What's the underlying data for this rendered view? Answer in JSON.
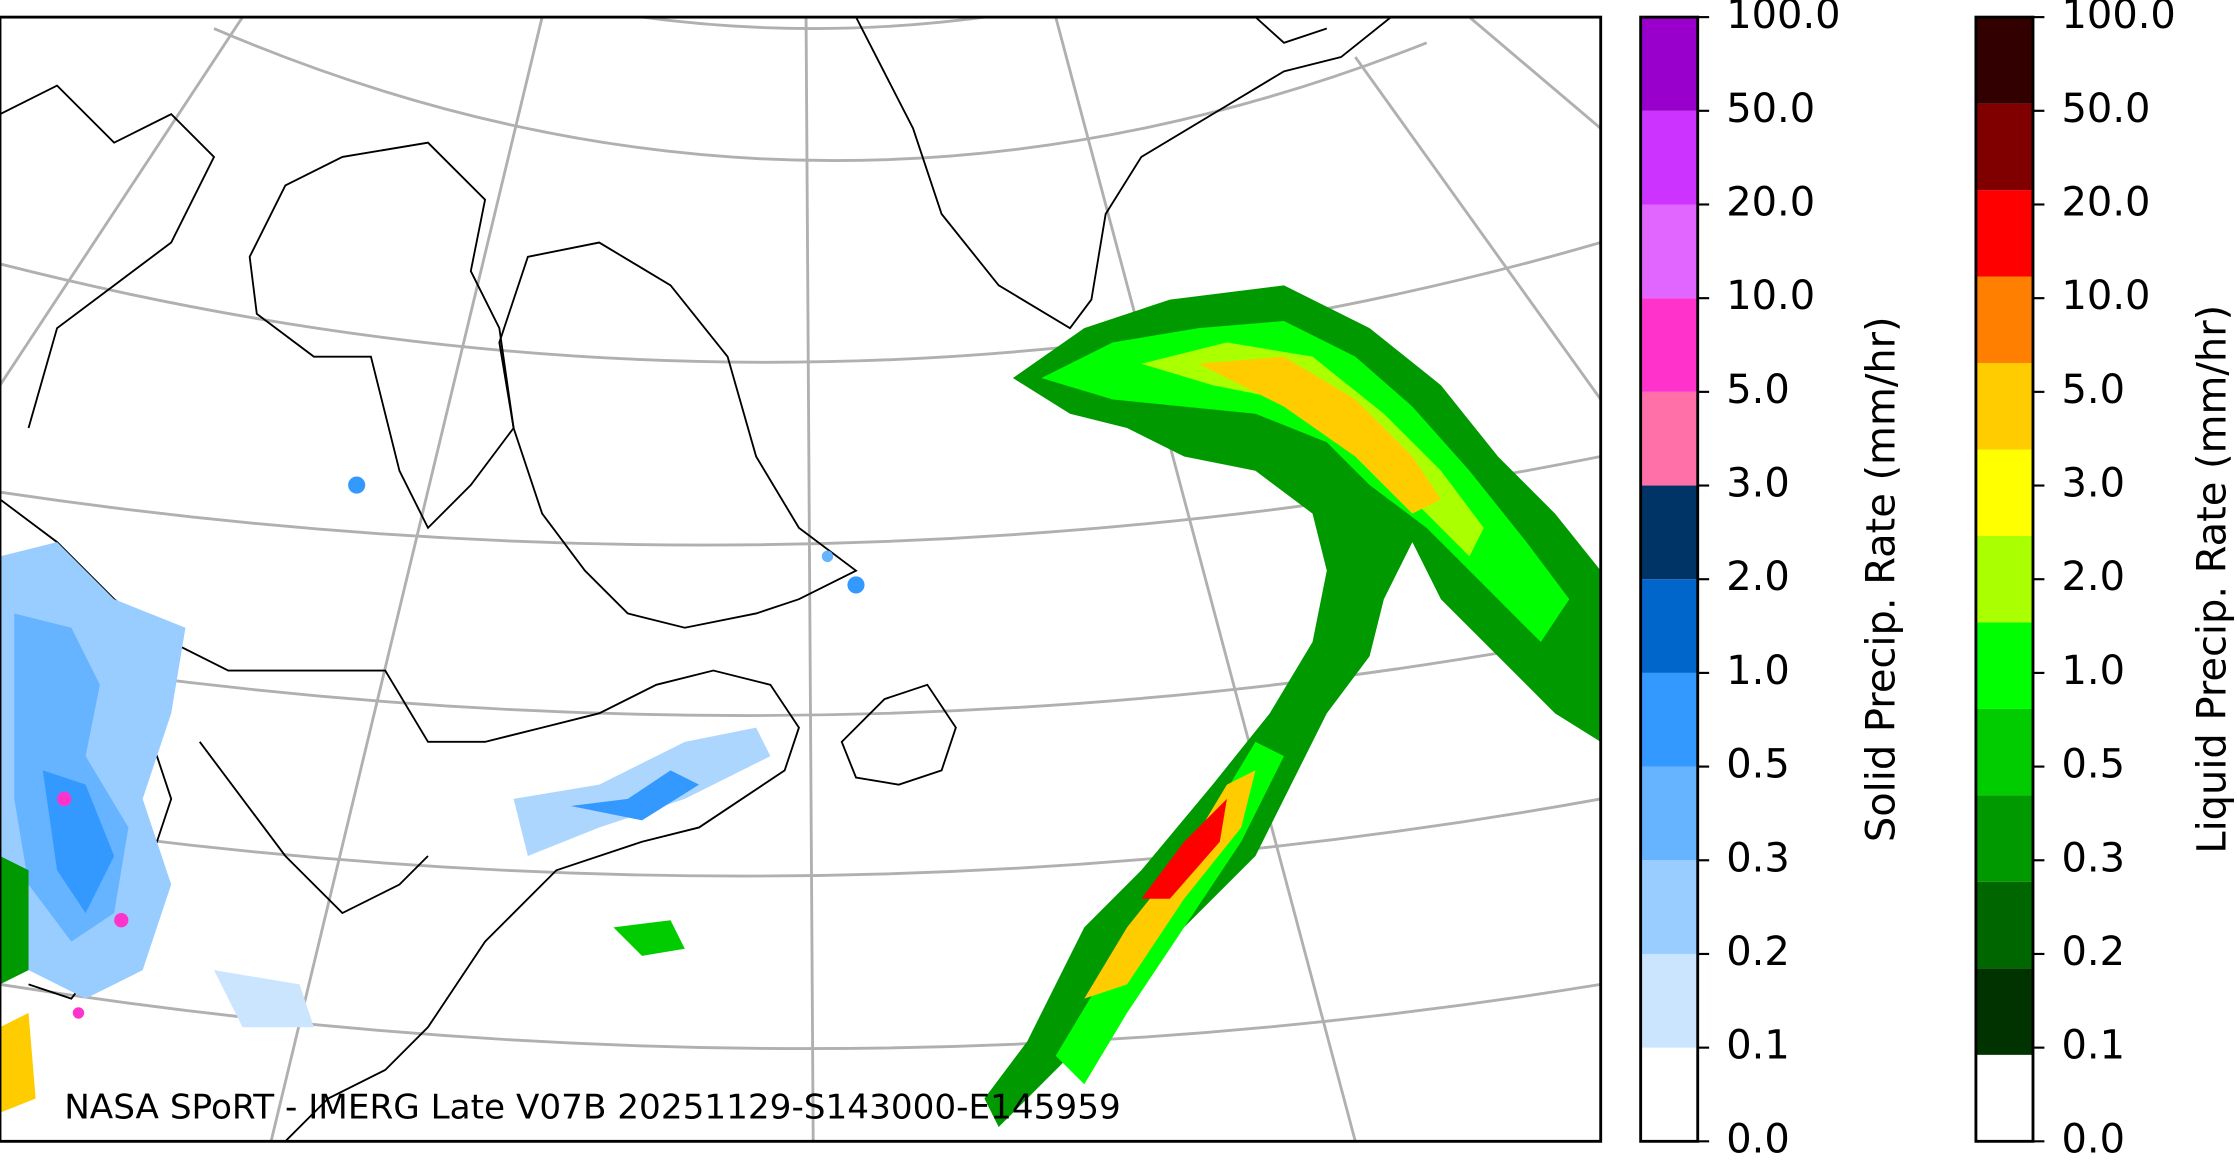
{
  "map": {
    "caption": "NASA SPoRT - IMERG Late V07B 20251129-S143000-E145959"
  },
  "solid_colorbar": {
    "label": "Solid Precip. Rate (mm/hr)",
    "ticks": [
      "0.0",
      "0.1",
      "0.2",
      "0.3",
      "0.5",
      "1.0",
      "2.0",
      "3.0",
      "5.0",
      "10.0",
      "20.0",
      "50.0",
      "100.0"
    ],
    "colors": [
      "#ffffff",
      "#cce5ff",
      "#99ccff",
      "#66b3ff",
      "#3399ff",
      "#0066cc",
      "#003366",
      "#ff6fa8",
      "#ff33cc",
      "#e066ff",
      "#cc33ff",
      "#9900cc"
    ]
  },
  "liquid_colorbar": {
    "label": "Liquid Precip. Rate (mm/hr)",
    "ticks": [
      "0.0",
      "0.1",
      "0.2",
      "0.3",
      "0.5",
      "1.0",
      "2.0",
      "3.0",
      "5.0",
      "10.0",
      "20.0",
      "50.0",
      "100.0"
    ],
    "colors": [
      "#ffffff",
      "#003300",
      "#006600",
      "#009900",
      "#00cc00",
      "#00ff00",
      "#aaff00",
      "#ffff00",
      "#ffcc00",
      "#ff8000",
      "#ff0000",
      "#800000",
      "#330000"
    ]
  }
}
